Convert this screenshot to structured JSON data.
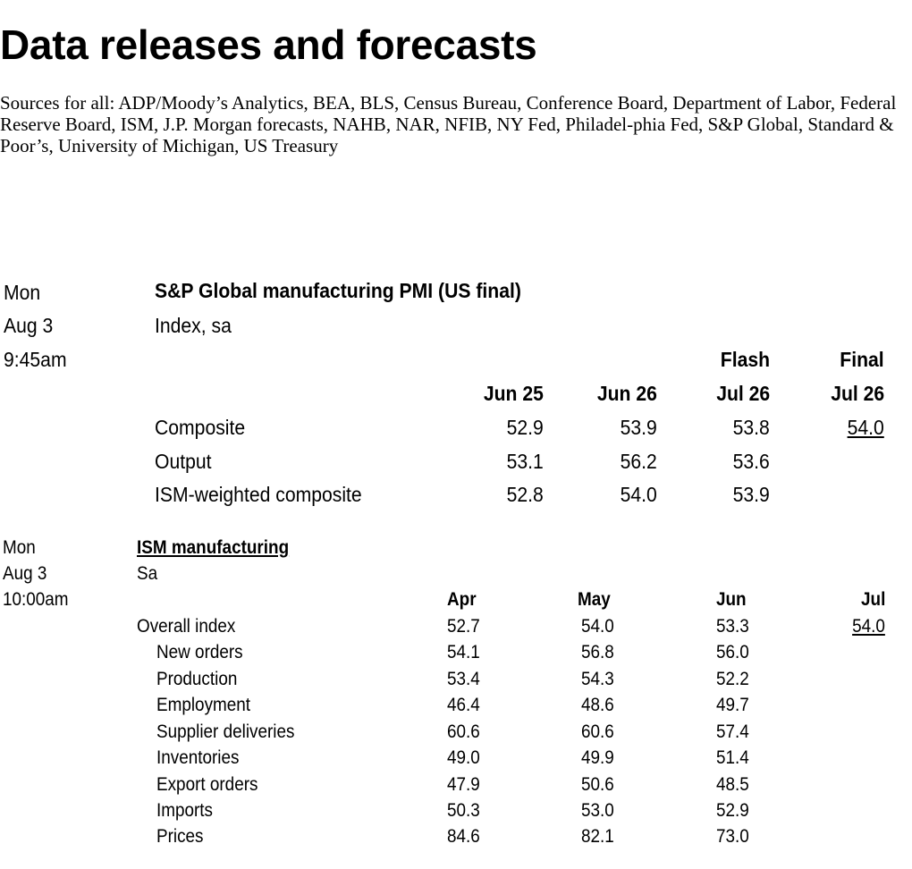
{
  "title": "Data releases and forecasts",
  "sources": "Sources for all: ADP/Moody’s Analytics, BEA, BLS, Census Bureau, Conference Board, Department of Labor, Federal Reserve Board, ISM, J.P. Morgan forecasts, NAHB, NAR, NFIB, NY Fed, Philadel-phia Fed, S&P Global, Standard & Poor’s, University of Michigan, US Treasury",
  "release1": {
    "day": "Mon",
    "date": "Aug 3",
    "time": "9:45am",
    "title": "S&P Global manufacturing PMI (US final)",
    "units": "Index, sa",
    "col_headers": [
      {
        "top": "",
        "bottom": "Jun 25"
      },
      {
        "top": "",
        "bottom": "Jun 26"
      },
      {
        "top": "Flash",
        "bottom": "Jul 26"
      },
      {
        "top": "Final",
        "bottom": "Jul 26"
      }
    ],
    "rows": [
      {
        "label": "Composite",
        "values": [
          "52.9",
          "53.9",
          "53.8",
          "54.0"
        ]
      },
      {
        "label": "Output",
        "values": [
          "53.1",
          "56.2",
          "53.6",
          ""
        ]
      },
      {
        "label": "ISM-weighted composite",
        "values": [
          "52.8",
          "54.0",
          "53.9",
          ""
        ]
      }
    ]
  },
  "release2": {
    "day": "Mon",
    "date": "Aug 3",
    "time": "10:00am",
    "title": "ISM manufacturing",
    "units": "Sa",
    "col_headers": [
      "Apr",
      "May",
      "Jun",
      "Jul"
    ],
    "rows": [
      {
        "label": "Overall index",
        "values": [
          "52.7",
          "54.0",
          "53.3",
          "54.0"
        ]
      },
      {
        "label": "New orders",
        "values": [
          "54.1",
          "56.8",
          "56.0",
          ""
        ]
      },
      {
        "label": "Production",
        "values": [
          "53.4",
          "54.3",
          "52.2",
          ""
        ]
      },
      {
        "label": "Employment",
        "values": [
          "46.4",
          "48.6",
          "49.7",
          ""
        ]
      },
      {
        "label": "Supplier deliveries",
        "values": [
          "60.6",
          "60.6",
          "57.4",
          ""
        ]
      },
      {
        "label": "Inventories",
        "values": [
          "49.0",
          "49.9",
          "51.4",
          ""
        ]
      },
      {
        "label": "Export orders",
        "values": [
          "47.9",
          "50.6",
          "48.5",
          ""
        ]
      },
      {
        "label": "Imports",
        "values": [
          "50.3",
          "53.0",
          "52.9",
          ""
        ]
      },
      {
        "label": "Prices",
        "values": [
          "84.6",
          "82.1",
          "73.0",
          ""
        ]
      }
    ]
  }
}
